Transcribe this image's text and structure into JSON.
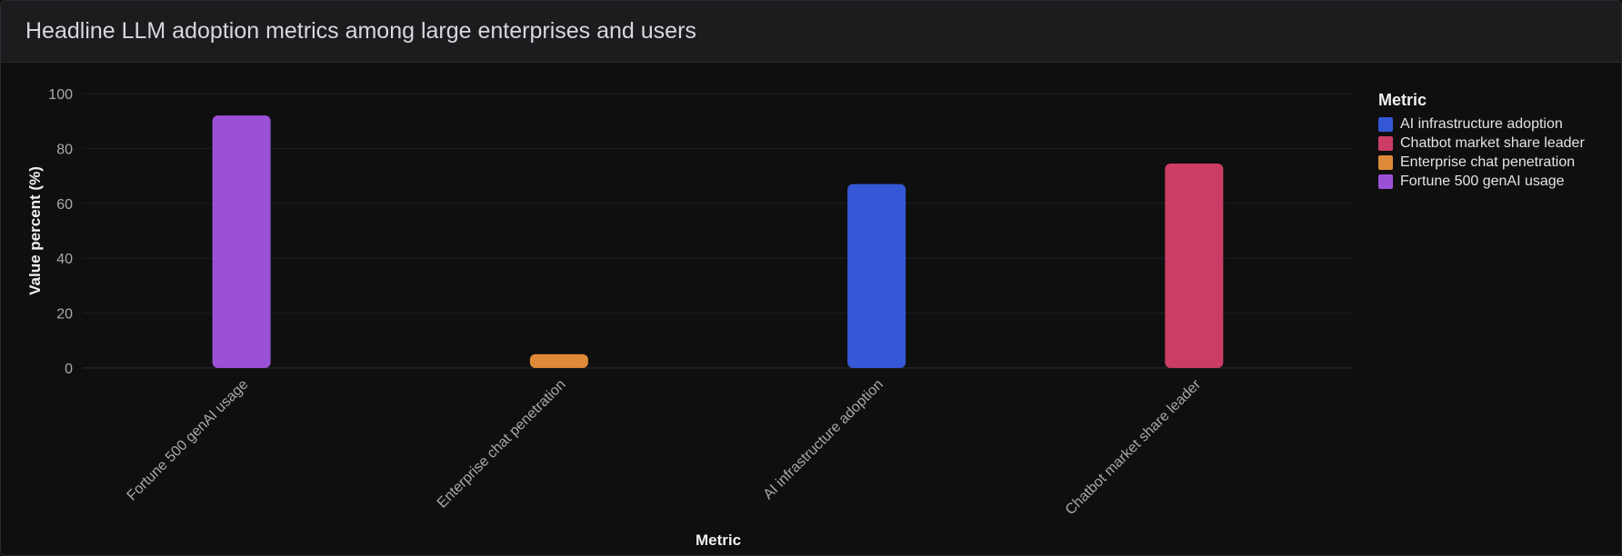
{
  "panel": {
    "title": "Headline LLM adoption metrics among large enterprises and users"
  },
  "chart_data": {
    "type": "bar",
    "title": "",
    "xlabel": "Metric",
    "ylabel": "Value percent (%)",
    "ylim": [
      0,
      100
    ],
    "yticks": [
      0,
      20,
      40,
      60,
      80,
      100
    ],
    "grid": true,
    "categories": [
      "Fortune 500 genAI usage",
      "Enterprise chat penetration",
      "AI infrastructure adoption",
      "Chatbot market share leader"
    ],
    "values": [
      92,
      5,
      67,
      74.5
    ],
    "bar_colors": [
      "#9b51d6",
      "#df8a38",
      "#3558d6",
      "#cc3d66"
    ],
    "legend": {
      "title": "Metric",
      "placement": "right",
      "items": [
        {
          "label": "AI infrastructure adoption",
          "color": "#3558d6"
        },
        {
          "label": "Chatbot market share leader",
          "color": "#cc3d66"
        },
        {
          "label": "Enterprise chat penetration",
          "color": "#df8a38"
        },
        {
          "label": "Fortune 500 genAI usage",
          "color": "#9b51d6"
        }
      ]
    }
  }
}
